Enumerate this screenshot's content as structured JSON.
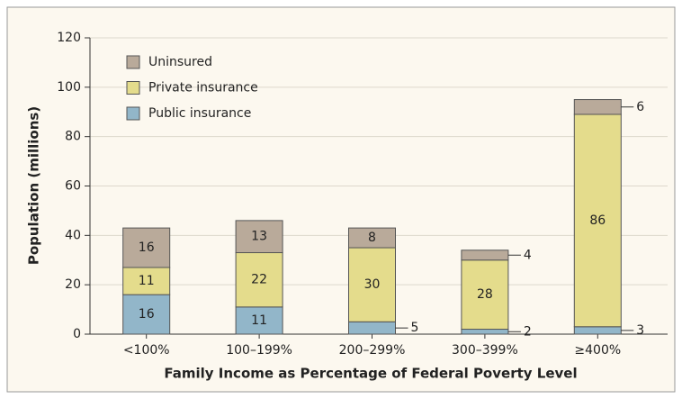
{
  "chart_data": {
    "type": "stacked_bar",
    "y_label": "Population (millions)",
    "x_label": "Family Income as Percentage of Federal Poverty Level",
    "categories": [
      "<100%",
      "100–199%",
      "200–299%",
      "300–399%",
      "≥400%"
    ],
    "series": [
      {
        "name": "Public insurance",
        "color": "#92b6c9",
        "values": [
          16,
          11,
          5,
          2,
          3
        ]
      },
      {
        "name": "Private insurance",
        "color": "#e4dc8c",
        "values": [
          11,
          22,
          30,
          28,
          86
        ]
      },
      {
        "name": "Uninsured",
        "color": "#b9aa9a",
        "values": [
          16,
          13,
          8,
          4,
          6
        ]
      }
    ],
    "ylim": [
      0,
      120
    ],
    "yticks": [
      0,
      20,
      40,
      60,
      80,
      100,
      120
    ],
    "grid": true,
    "legend": "top-left"
  }
}
